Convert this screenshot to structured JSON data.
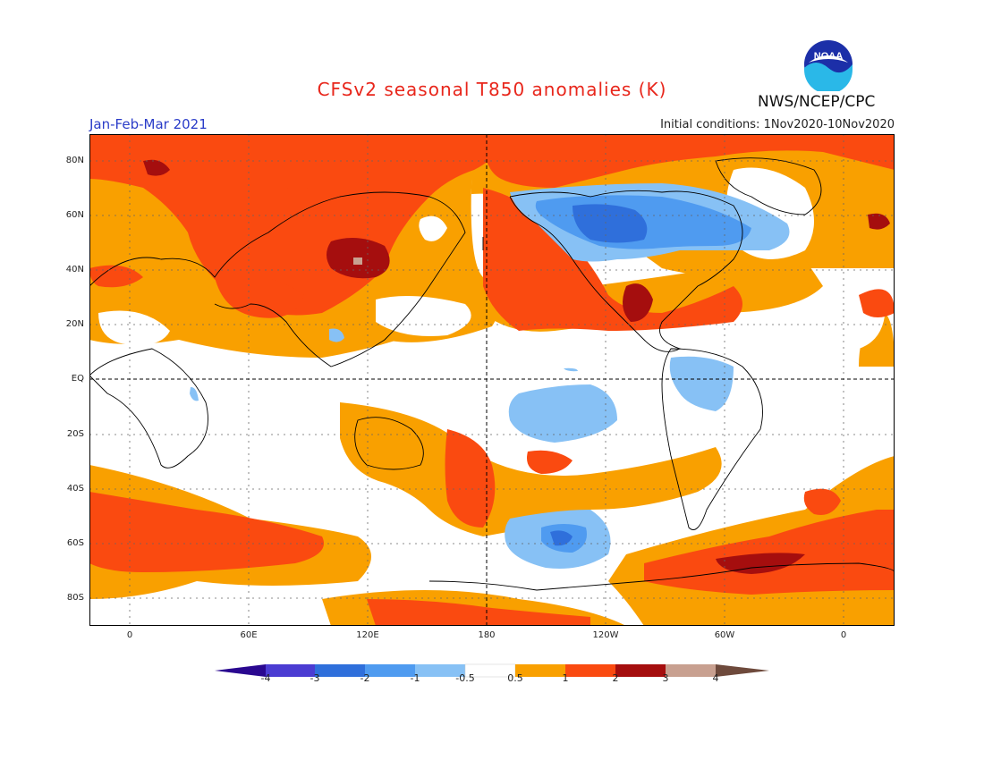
{
  "header": {
    "title": "CFSv2 seasonal T850 anomalies (K)",
    "period": "Jan-Feb-Mar 2021",
    "initial_conditions": "Initial conditions: 1Nov2020-10Nov2020",
    "agency": "NWS/NCEP/CPC",
    "logo_text": "NOAA"
  },
  "map": {
    "lat_labels": [
      "80N",
      "60N",
      "40N",
      "20N",
      "EQ",
      "20S",
      "40S",
      "60S",
      "80S"
    ],
    "lon_labels": [
      "0",
      "60E",
      "120E",
      "180",
      "120W",
      "60W",
      "0"
    ]
  },
  "legend": {
    "labels": [
      "-4",
      "-3",
      "-2",
      "-1",
      "-0.5",
      "0.5",
      "1",
      "2",
      "3",
      "4"
    ],
    "colors": [
      "#2a0890",
      "#4b3cd2",
      "#2f6fdb",
      "#4f9bf0",
      "#87c1f5",
      "#ffffff",
      "#f9a000",
      "#fa4a10",
      "#a50e0e",
      "#c8a090",
      "#6e4a3c"
    ]
  },
  "colors": {
    "blue_strong": "#2f6fdb",
    "blue_mid": "#4f9bf0",
    "blue_light": "#87c1f5",
    "orange": "#f9a000",
    "red": "#fa4a10",
    "dark_red": "#a50e0e",
    "title": "#e8261b",
    "period": "#2a3cc8"
  }
}
